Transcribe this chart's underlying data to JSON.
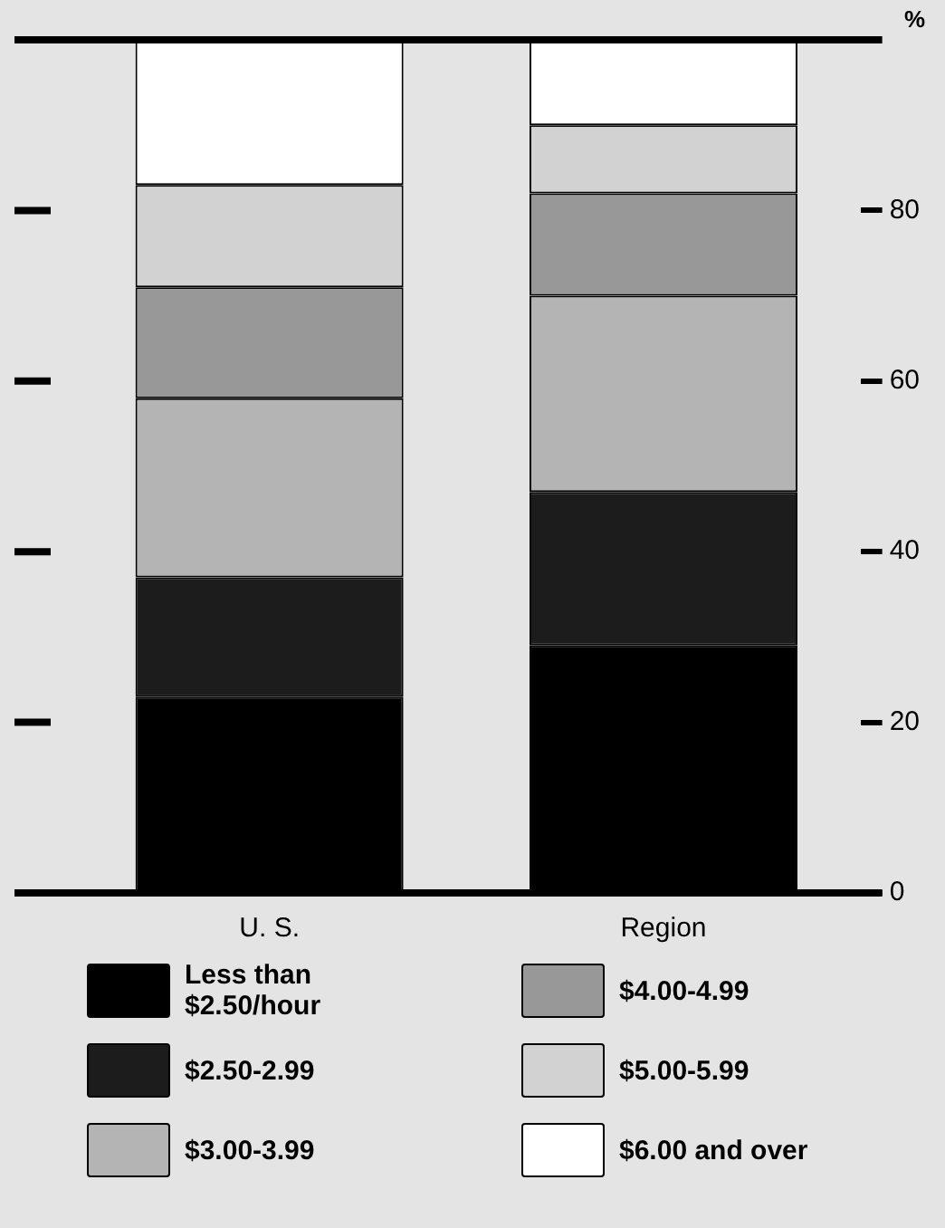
{
  "chart_data": {
    "type": "bar",
    "stacked": true,
    "categories": [
      "U. S.",
      "Region"
    ],
    "ylabel": "%",
    "ylim": [
      0,
      100
    ],
    "yticks": [
      0,
      20,
      40,
      60,
      80
    ],
    "grid": false,
    "legend": "bottom",
    "series": [
      {
        "name": "Less than\n$2.50/hour",
        "color": "#000000",
        "values": [
          23,
          29
        ]
      },
      {
        "name": "$2.50-2.99",
        "color": "#1c1c1c",
        "values": [
          14,
          18
        ]
      },
      {
        "name": "$3.00-3.99",
        "color": "#b4b4b4",
        "values": [
          21,
          23
        ]
      },
      {
        "name": "$4.00-4.99",
        "color": "#989898",
        "values": [
          13,
          12
        ]
      },
      {
        "name": "$5.00-5.99",
        "color": "#d2d2d2",
        "values": [
          12,
          8
        ]
      },
      {
        "name": "$6.00 and over",
        "color": "#ffffff",
        "values": [
          17,
          10
        ]
      }
    ]
  }
}
